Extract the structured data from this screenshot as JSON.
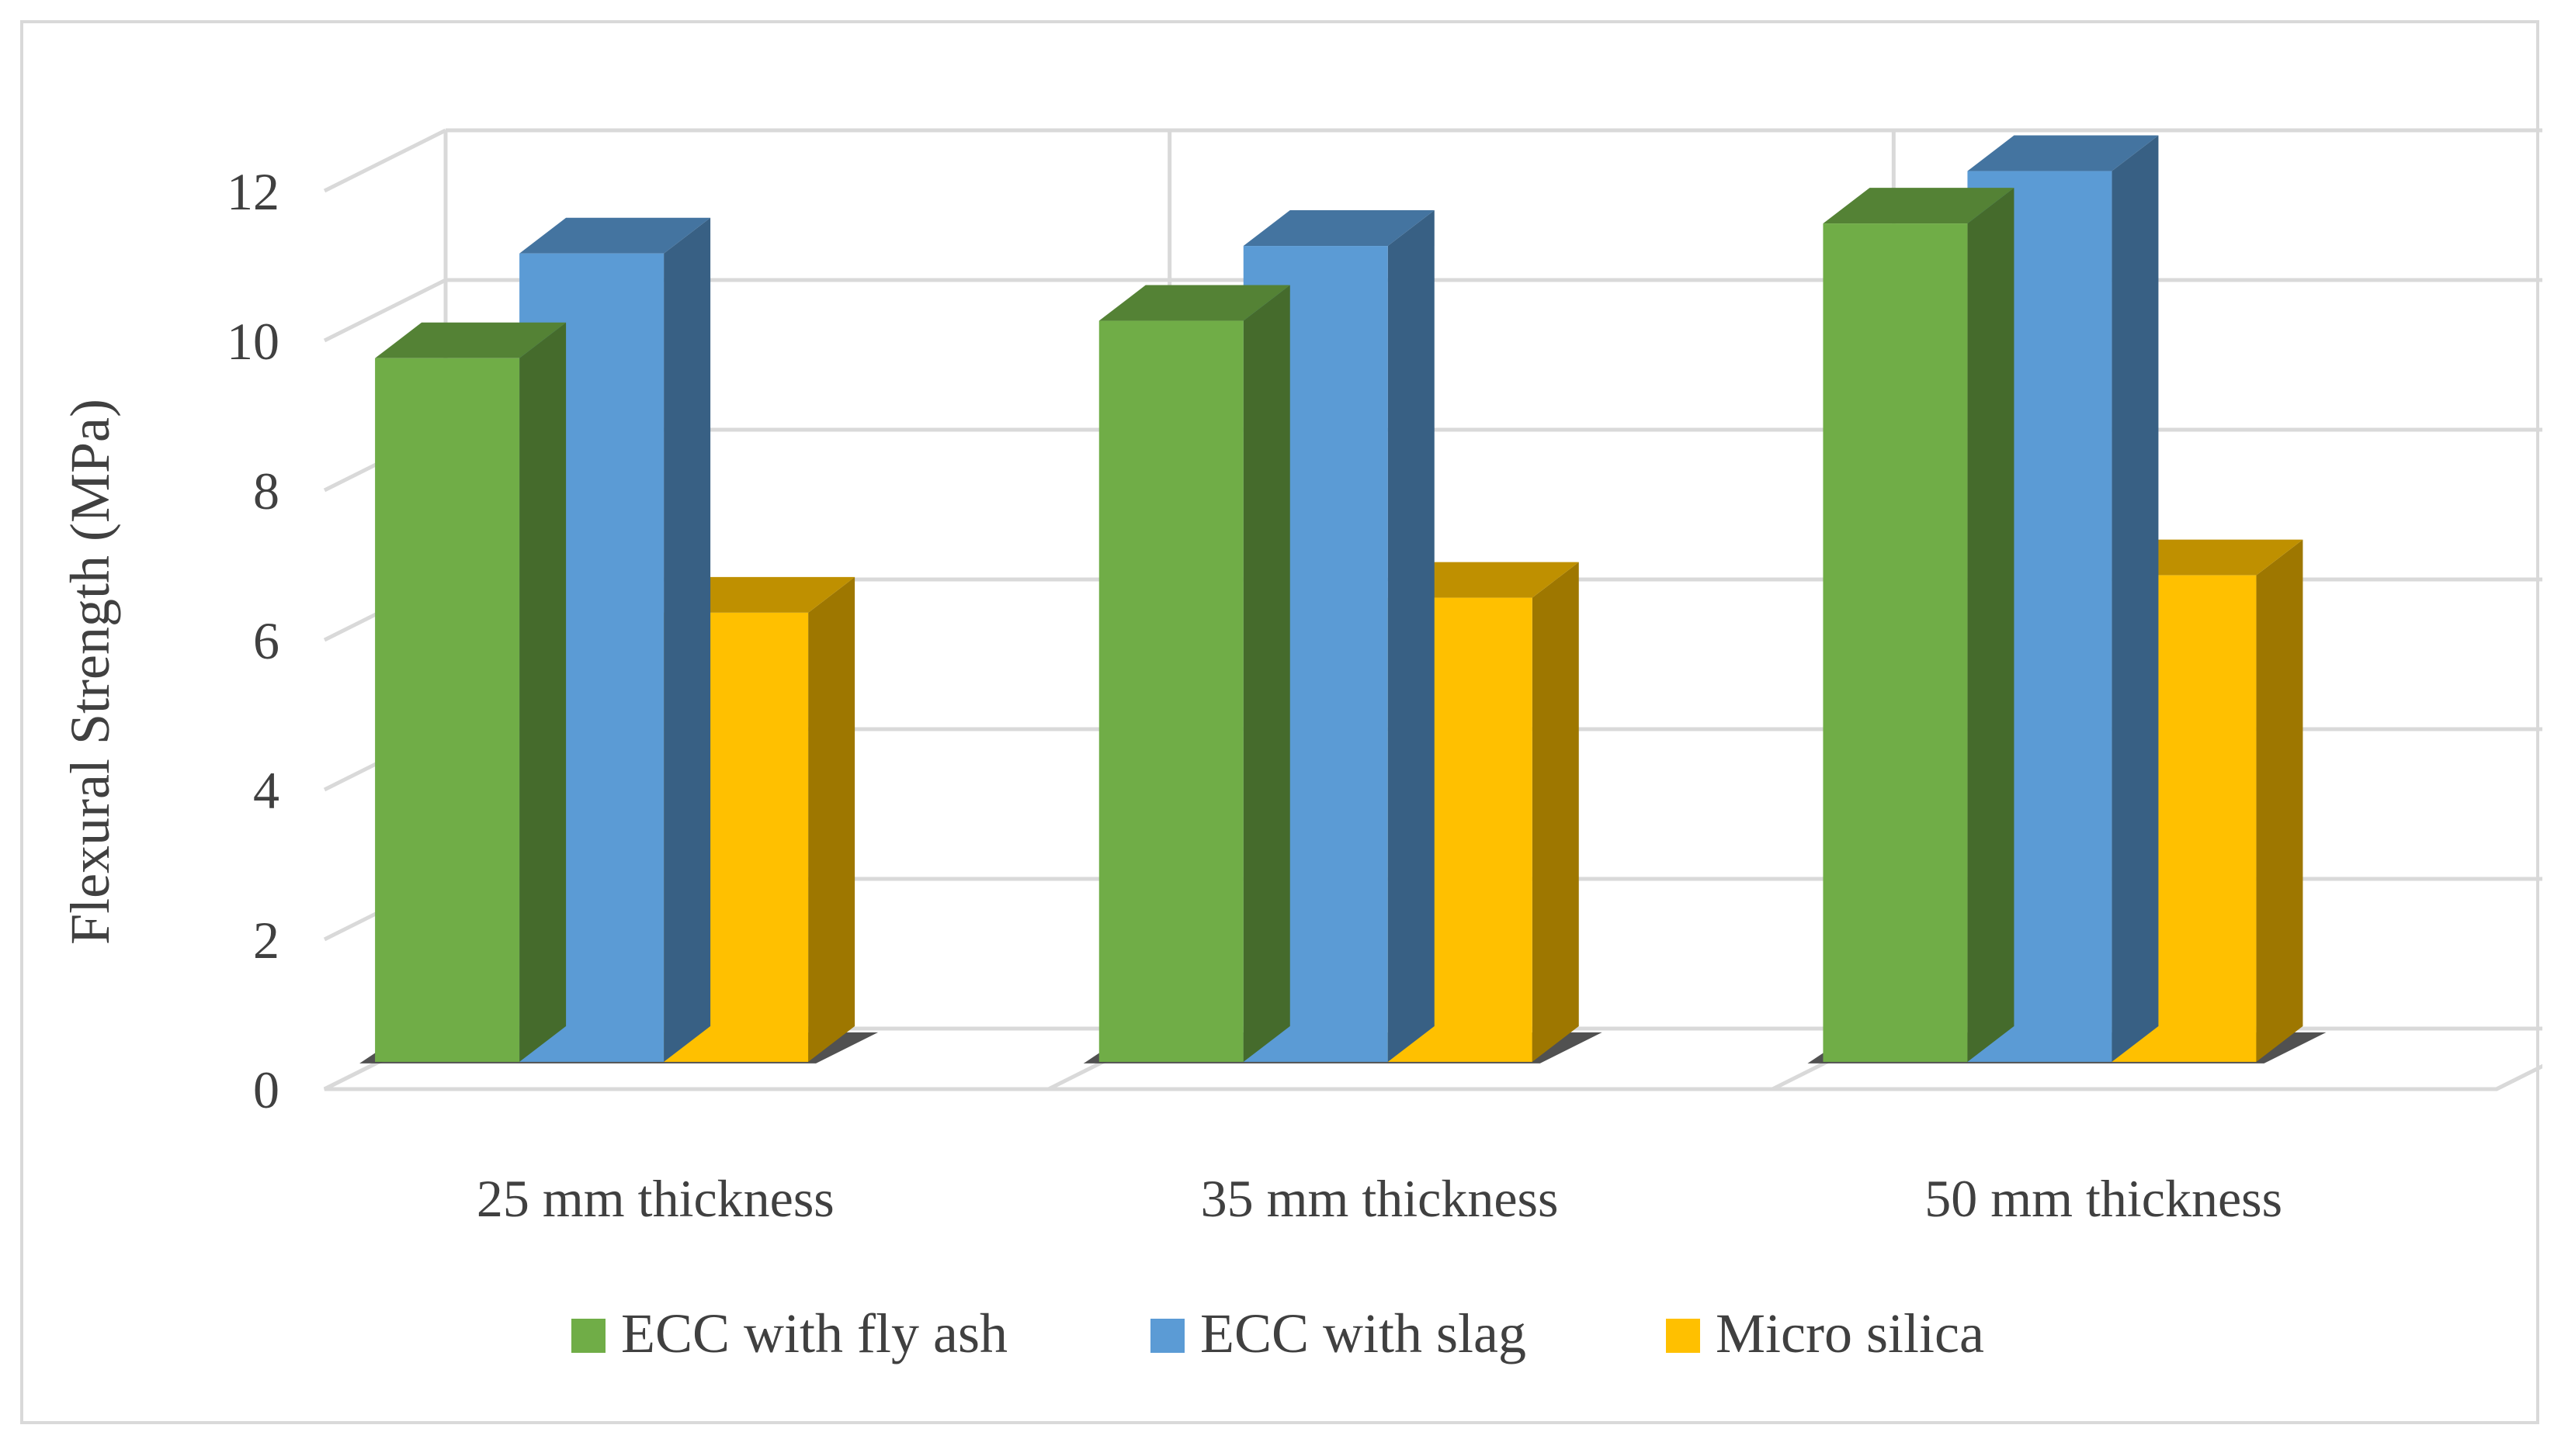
{
  "chart_data": {
    "type": "bar",
    "style": "3d-clustered-column",
    "title": "",
    "xlabel": "",
    "ylabel": "Flexural Strength (MPa)",
    "ylim": [
      0,
      12
    ],
    "yticks": [
      "0",
      "2",
      "4",
      "6",
      "8",
      "10",
      "12"
    ],
    "grid": true,
    "legend": "bottom",
    "categories": [
      "25 mm thickness",
      "35 mm thickness",
      "50 mm thickness"
    ],
    "series": [
      {
        "name": "ECC with fly ash",
        "values": [
          9.4,
          9.9,
          11.2
        ],
        "color": "#70ad47"
      },
      {
        "name": "ECC with slag",
        "values": [
          10.8,
          10.9,
          11.9
        ],
        "color": "#5b9bd5"
      },
      {
        "name": "Micro silica",
        "values": [
          6.0,
          6.2,
          6.5
        ],
        "color": "#ffc000"
      }
    ]
  }
}
